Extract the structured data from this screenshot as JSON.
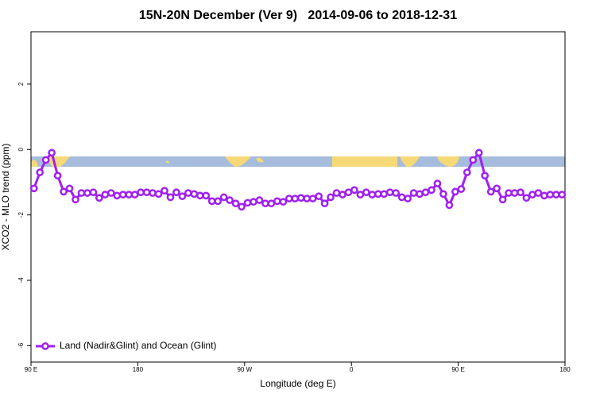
{
  "chart_data": {
    "type": "line",
    "title": "15N-20N December (Ver 9)   2014-09-06 to 2018-12-31",
    "x_label": "Longitude (deg E)",
    "y_label": "XCO2 - MLO trend (ppm)",
    "x": [
      92.5,
      97.5,
      102.5,
      107.5,
      112.5,
      117.5,
      122.5,
      127.5,
      132.5,
      137.5,
      142.5,
      147.5,
      152.5,
      157.5,
      162.5,
      167.5,
      172.5,
      177.5,
      182.5,
      187.5,
      192.5,
      197.5,
      202.5,
      207.5,
      212.5,
      217.5,
      222.5,
      227.5,
      232.5,
      237.5,
      242.5,
      247.5,
      252.5,
      257.5,
      262.5,
      267.5,
      272.5,
      277.5,
      282.5,
      287.5,
      292.5,
      297.5,
      302.5,
      307.5,
      312.5,
      317.5,
      322.5,
      327.5,
      332.5,
      337.5,
      342.5,
      347.5,
      352.5,
      357.5,
      362.5,
      367.5,
      372.5,
      377.5,
      382.5,
      387.5,
      392.5,
      397.5,
      402.5,
      407.5,
      412.5,
      417.5,
      422.5,
      427.5,
      432.5,
      437.5,
      442.5,
      447.5,
      452.5,
      457.5,
      462.5,
      467.5,
      472.5,
      477.5,
      482.5,
      487.5,
      492.5,
      497.5,
      502.5,
      507.5,
      512.5,
      517.5,
      522.5,
      527.5,
      532.5,
      537.5
    ],
    "series": [
      {
        "name": "Land (Nadir&Glint) and Ocean (Glint)",
        "color": "#a020f0",
        "values": [
          -1.19,
          -0.7,
          -0.32,
          -0.1,
          -0.8,
          -1.29,
          -1.19,
          -1.53,
          -1.33,
          -1.33,
          -1.31,
          -1.48,
          -1.38,
          -1.33,
          -1.41,
          -1.38,
          -1.38,
          -1.38,
          -1.31,
          -1.31,
          -1.33,
          -1.36,
          -1.26,
          -1.46,
          -1.31,
          -1.43,
          -1.33,
          -1.36,
          -1.41,
          -1.41,
          -1.58,
          -1.58,
          -1.46,
          -1.55,
          -1.65,
          -1.75,
          -1.63,
          -1.6,
          -1.55,
          -1.65,
          -1.65,
          -1.58,
          -1.6,
          -1.5,
          -1.5,
          -1.48,
          -1.5,
          -1.5,
          -1.43,
          -1.65,
          -1.46,
          -1.33,
          -1.38,
          -1.31,
          -1.24,
          -1.38,
          -1.31,
          -1.38,
          -1.36,
          -1.36,
          -1.31,
          -1.33,
          -1.46,
          -1.5,
          -1.33,
          -1.36,
          -1.31,
          -1.24,
          -1.04,
          -1.36,
          -1.7,
          -1.29,
          -1.21,
          -0.7,
          -0.32,
          -0.1,
          -0.8,
          -1.29,
          -1.19,
          -1.53,
          -1.33,
          -1.33,
          -1.31,
          -1.48,
          -1.38,
          -1.33,
          -1.41,
          -1.38,
          -1.38,
          -1.38
        ]
      }
    ],
    "xlim": [
      90,
      540
    ],
    "xticks": [
      {
        "value": 90,
        "label": "90 E"
      },
      180,
      {
        "value": 270,
        "label": "90 W"
      },
      {
        "value": 360,
        "label": "0"
      },
      {
        "value": 450,
        "label": "90 E"
      },
      {
        "value": 540,
        "label": "180"
      }
    ],
    "ylim": [
      -6.5,
      3.6
    ],
    "yticks": [
      2,
      0,
      -2,
      -4,
      -6
    ],
    "legend": "bottom-left"
  }
}
